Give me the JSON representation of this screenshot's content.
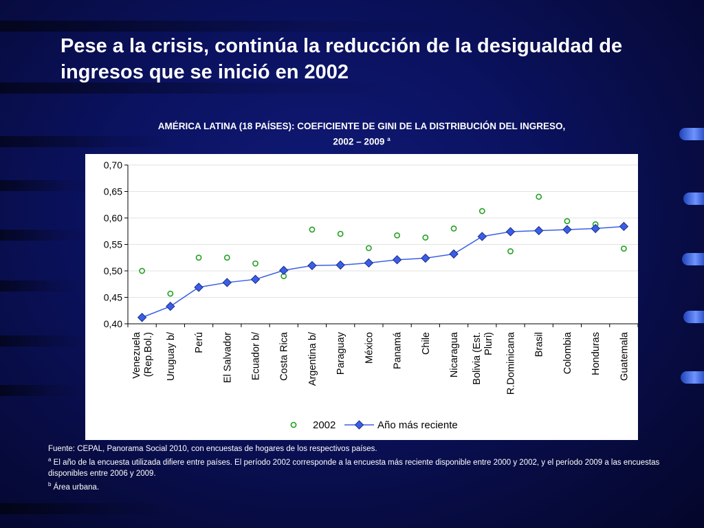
{
  "slide": {
    "title": "Pese a la crisis, continúa la reducción de la desigualdad de ingresos que se inició en 2002"
  },
  "chart_header": {
    "line1": "AMÉRICA LATINA (18 PAÍSES): COEFICIENTE DE GINI DE LA DISTRIBUCIÓN DEL INGRESO,",
    "line2": "2002 – 2009",
    "mark": "a"
  },
  "chart_data": {
    "type": "line",
    "title": "AMÉRICA LATINA (18 PAÍSES): COEFICIENTE DE GINI DE LA DISTRIBUCIÓN DEL INGRESO, 2002 – 2009 a",
    "categories": [
      "Venezuela\n(Rep.Bol.)",
      "Uruguay b/",
      "Perú",
      "El Salvador",
      "Ecuador b/",
      "Costa Rica",
      "Argentina b/",
      "Paraguay",
      "México",
      "Panamá",
      "Chile",
      "Nicaragua",
      "Bolivia (Est.\nPluri)",
      "R.Dominicana",
      "Brasil",
      "Colombia",
      "Honduras",
      "Guatemala"
    ],
    "series": [
      {
        "name": "2002",
        "style": "markers-only",
        "marker": "circle",
        "color": "#22a022",
        "values": [
          0.5,
          0.457,
          0.525,
          0.525,
          0.514,
          0.49,
          0.578,
          0.57,
          0.543,
          0.567,
          0.563,
          0.58,
          0.613,
          0.537,
          0.64,
          0.594,
          0.588,
          0.542
        ]
      },
      {
        "name": "Año más reciente",
        "style": "line-markers",
        "marker": "diamond",
        "color": "#3b5ee6",
        "values": [
          0.412,
          0.433,
          0.469,
          0.478,
          0.484,
          0.501,
          0.51,
          0.511,
          0.515,
          0.521,
          0.524,
          0.532,
          0.565,
          0.574,
          0.576,
          0.578,
          0.58,
          0.584
        ]
      }
    ],
    "ylim": [
      0.4,
      0.7
    ],
    "yticks": [
      "0,40",
      "0,45",
      "0,50",
      "0,55",
      "0,60",
      "0,65",
      "0,70"
    ],
    "ytick_values": [
      0.4,
      0.45,
      0.5,
      0.55,
      0.6,
      0.65,
      0.7
    ],
    "xlabel": "",
    "ylabel": "",
    "grid": true,
    "legend": "bottom-center"
  },
  "footnotes": {
    "source": "Fuente: CEPAL, Panorama Social 2010,  con encuestas de hogares de los respectivos países.",
    "note_a_mark": "a",
    "note_a": " El año de la encuesta utilizada difiere entre países. El período 2002 corresponde a la encuesta más reciente disponible entre 2000 y 2002, y el período 2009 a las encuestas disponibles entre 2006 y 2009.",
    "note_b_mark": "b",
    "note_b": " Área urbana."
  }
}
